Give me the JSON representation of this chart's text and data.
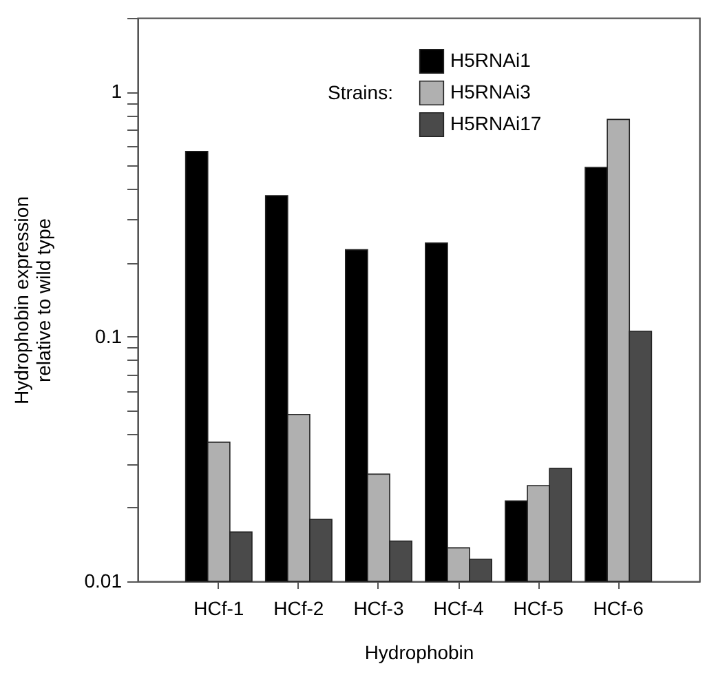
{
  "chart_data": {
    "type": "bar",
    "xlabel": "Hydrophobin",
    "ylabel": "Hydrophobin expression\nrelative to wild type",
    "legend_title": "Strains:",
    "categories": [
      "HCf-1",
      "HCf-2",
      "HCf-3",
      "HCf-4",
      "HCf-5",
      "HCf-6"
    ],
    "series": [
      {
        "name": "H5RNAi1",
        "color": "#000000",
        "values": [
          0.57,
          0.376,
          0.226,
          0.241,
          0.0213,
          0.49
        ]
      },
      {
        "name": "H5RNAi3",
        "color": "#b0b0b0",
        "values": [
          0.037,
          0.048,
          0.0274,
          0.0137,
          0.0246,
          0.77
        ]
      },
      {
        "name": "H5RNAi17",
        "color": "#4a4a4a",
        "values": [
          0.0159,
          0.0179,
          0.0146,
          0.0123,
          0.0289,
          0.105
        ]
      }
    ],
    "log": true,
    "ylim": [
      0.01,
      2
    ],
    "yticks": [
      0.01,
      {
        "value": 0.02,
        "label": null
      },
      {
        "value": 0.03,
        "label": null
      },
      {
        "value": 0.04,
        "label": null
      },
      {
        "value": 0.05,
        "label": null
      },
      {
        "value": 0.06,
        "label": null
      },
      {
        "value": 0.07,
        "label": null
      },
      {
        "value": 0.08,
        "label": null
      },
      {
        "value": 0.09,
        "label": null
      },
      0.1,
      {
        "value": 0.2,
        "label": null
      },
      {
        "value": 0.3,
        "label": null
      },
      {
        "value": 0.4,
        "label": null
      },
      {
        "value": 0.5,
        "label": null
      },
      {
        "value": 0.6,
        "label": null
      },
      {
        "value": 0.7,
        "label": null
      },
      {
        "value": 0.8,
        "label": null
      },
      {
        "value": 0.9,
        "label": null
      },
      1,
      {
        "value": 2,
        "label": null
      }
    ],
    "grid": false,
    "legend": "top right"
  }
}
